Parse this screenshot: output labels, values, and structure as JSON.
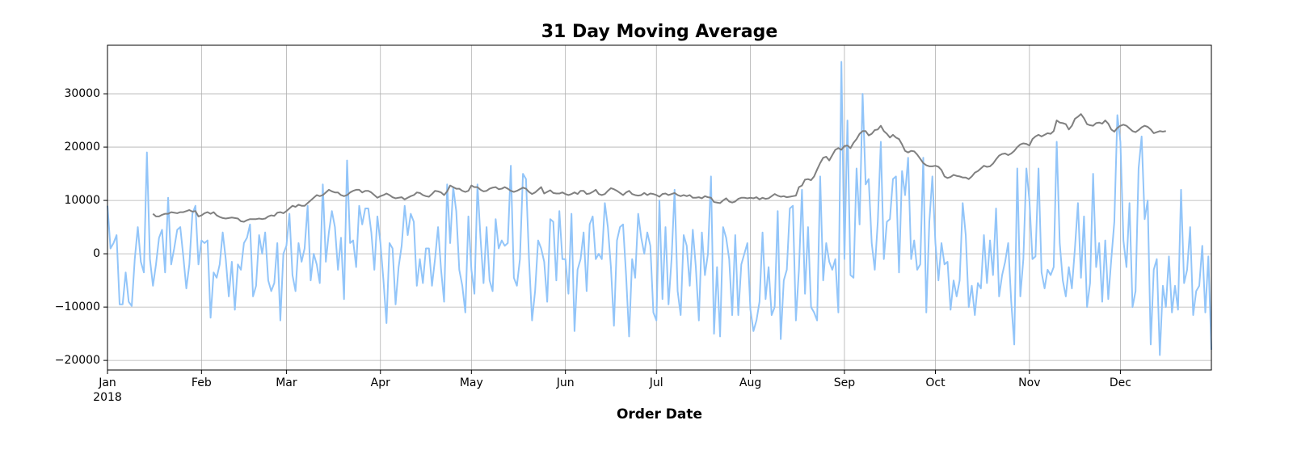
{
  "chart_data": {
    "type": "line",
    "title": "31 Day Moving Average",
    "xlabel": "Order Date",
    "x_year_label": "2018",
    "xlim": [
      0,
      364
    ],
    "ylim": [
      -21800,
      39100
    ],
    "grid": true,
    "xticks": [
      {
        "value": 0,
        "label": "Jan"
      },
      {
        "value": 31,
        "label": "Feb"
      },
      {
        "value": 59,
        "label": "Mar"
      },
      {
        "value": 90,
        "label": "Apr"
      },
      {
        "value": 120,
        "label": "May"
      },
      {
        "value": 151,
        "label": "Jun"
      },
      {
        "value": 181,
        "label": "Jul"
      },
      {
        "value": 212,
        "label": "Aug"
      },
      {
        "value": 243,
        "label": "Sep"
      },
      {
        "value": 273,
        "label": "Oct"
      },
      {
        "value": 304,
        "label": "Nov"
      },
      {
        "value": 334,
        "label": "Dec"
      }
    ],
    "yticks": [
      {
        "value": -20000,
        "label": "−20000"
      },
      {
        "value": -10000,
        "label": "−10000"
      },
      0,
      10000,
      20000,
      30000
    ],
    "series": [
      {
        "color": "#92c5f9",
        "values": [
          9000,
          1000,
          2000,
          3500,
          -9500,
          -9500,
          -3500,
          -9000,
          -9800,
          -1000,
          5000,
          -1500,
          -3500,
          19000,
          -1000,
          -6000,
          -2000,
          3000,
          4500,
          -3500,
          10500,
          -2000,
          1000,
          4500,
          5000,
          -500,
          -6500,
          -2000,
          7500,
          9000,
          -2000,
          2500,
          2000,
          2500,
          -12000,
          -3500,
          -4500,
          -2000,
          4000,
          -1000,
          -8000,
          -1500,
          -10500,
          -2000,
          -3000,
          2000,
          3000,
          5500,
          -8000,
          -6000,
          3500,
          0,
          4000,
          -5000,
          -7000,
          -5500,
          2000,
          -12500,
          0,
          1500,
          7500,
          -4000,
          -7000,
          2000,
          -1500,
          1000,
          9000,
          -5000,
          0,
          -2000,
          -5500,
          13000,
          -1500,
          4000,
          8000,
          5000,
          -3000,
          3000,
          -8500,
          17500,
          2000,
          2500,
          -2500,
          9000,
          5500,
          8500,
          8500,
          4000,
          -3000,
          7000,
          2000,
          -5000,
          -13000,
          2000,
          1000,
          -9500,
          -2500,
          1500,
          9000,
          3500,
          7500,
          6000,
          -6000,
          -1000,
          -5500,
          1000,
          1000,
          -6000,
          -1000,
          5000,
          -3000,
          -9000,
          13000,
          2000,
          12500,
          8000,
          -3000,
          -6000,
          -11000,
          7000,
          -3000,
          -7500,
          13000,
          3000,
          -5500,
          5000,
          -5000,
          -7000,
          6500,
          1000,
          2500,
          1500,
          2000,
          16500,
          -4500,
          -6000,
          -1000,
          15000,
          14000,
          -1000,
          -12500,
          -7000,
          2500,
          1000,
          -1500,
          -9000,
          6500,
          6000,
          -5000,
          8000,
          -1000,
          -1000,
          -7500,
          7500,
          -14500,
          -3000,
          -1000,
          4000,
          -7000,
          5500,
          7000,
          -1000,
          0,
          -1000,
          9500,
          5000,
          -2500,
          -13500,
          2500,
          5000,
          5500,
          -4000,
          -15500,
          -1000,
          -4500,
          7500,
          3000,
          0,
          4000,
          1500,
          -11000,
          -12500,
          10000,
          -8500,
          5000,
          -9500,
          -1000,
          12000,
          -7000,
          -11500,
          3500,
          1500,
          -6000,
          4500,
          -2500,
          -12500,
          4000,
          -4000,
          0,
          14500,
          -15000,
          -2500,
          -15500,
          5000,
          3000,
          -1000,
          -11500,
          3500,
          -11500,
          -2000,
          0,
          2000,
          -10500,
          -14500,
          -12500,
          -9000,
          4000,
          -8500,
          -2500,
          -11500,
          -10000,
          8000,
          -16000,
          -5000,
          -3000,
          8500,
          9000,
          -12500,
          -3000,
          12000,
          -7500,
          5000,
          -10000,
          -11000,
          -12500,
          14500,
          -5000,
          2000,
          -1500,
          -3000,
          -1000,
          -11000,
          36000,
          -1000,
          25000,
          -4000,
          -4500,
          16000,
          5500,
          30000,
          13000,
          14000,
          2000,
          -3000,
          6000,
          21000,
          -1000,
          6000,
          6500,
          14000,
          14500,
          -3500,
          15500,
          11000,
          18000,
          -1000,
          2500,
          -3000,
          -2000,
          18000,
          -11000,
          6000,
          14500,
          2000,
          -5000,
          2000,
          -2000,
          -1500,
          -10500,
          -5000,
          -8000,
          -5000,
          9500,
          3500,
          -10000,
          -6000,
          -11500,
          -5500,
          -6500,
          3500,
          -5500,
          2500,
          -4000,
          8500,
          -8000,
          -4000,
          -1500,
          2000,
          -9000,
          -17000,
          16000,
          -8000,
          -1000,
          16000,
          10000,
          -1000,
          -500,
          16000,
          -3500,
          -6500,
          -3000,
          -4000,
          -2500,
          21000,
          2000,
          -5000,
          -8000,
          -2500,
          -6500,
          1000,
          9500,
          -4500,
          7000,
          -10000,
          -5500,
          15000,
          -2500,
          2000,
          -9000,
          2500,
          -8500,
          -1000,
          6000,
          26000,
          21000,
          2500,
          -2500,
          9500,
          -10000,
          -7000,
          16000,
          22000,
          6500,
          10000,
          -17000,
          -3000,
          -1000,
          -19000,
          -6000,
          -10000,
          -500,
          -11000,
          -6000,
          -10500,
          12000,
          -5500,
          -3000,
          5000,
          -11500,
          -7000,
          -6000,
          1500,
          -11000,
          -500,
          -18000
        ]
      },
      {
        "color": "#808080",
        "values": [
          null,
          null,
          null,
          null,
          null,
          null,
          null,
          null,
          null,
          null,
          null,
          null,
          null,
          null,
          null,
          7500,
          7000,
          7000,
          7300,
          7500,
          7500,
          7800,
          7700,
          7600,
          7800,
          7800,
          8000,
          8200,
          7900,
          8000,
          7000,
          7200,
          7600,
          7800,
          7500,
          7800,
          7200,
          6900,
          6700,
          6600,
          6700,
          6800,
          6700,
          6600,
          6100,
          6000,
          6300,
          6500,
          6500,
          6500,
          6600,
          6500,
          6600,
          7000,
          7200,
          7100,
          7700,
          7800,
          7600,
          8000,
          8500,
          9000,
          8800,
          9200,
          9000,
          9000,
          9500,
          10000,
          10500,
          11000,
          10800,
          11000,
          11500,
          12000,
          11700,
          11500,
          11500,
          11000,
          10800,
          11000,
          11500,
          11800,
          12000,
          12000,
          11500,
          11800,
          11800,
          11500,
          11000,
          10500,
          10800,
          11000,
          11300,
          11000,
          10600,
          10400,
          10500,
          10600,
          10200,
          10500,
          10800,
          11000,
          11500,
          11400,
          11000,
          10800,
          10700,
          11200,
          11800,
          11700,
          11500,
          11000,
          11700,
          12800,
          12500,
          12200,
          12200,
          11800,
          11600,
          11800,
          12800,
          12500,
          12500,
          12000,
          11700,
          11800,
          12200,
          12400,
          12500,
          12100,
          12200,
          12500,
          12200,
          11800,
          11600,
          11800,
          12100,
          12400,
          12200,
          11600,
          11200,
          11500,
          12000,
          12500,
          11300,
          11600,
          11900,
          11400,
          11300,
          11300,
          11500,
          11200,
          11000,
          11200,
          11500,
          11200,
          11800,
          11800,
          11200,
          11300,
          11600,
          12000,
          11200,
          11000,
          11200,
          11800,
          12300,
          12100,
          11800,
          11400,
          11000,
          11500,
          11800,
          11200,
          11000,
          10900,
          11000,
          11400,
          11000,
          11300,
          11200,
          11000,
          10700,
          11200,
          11300,
          11000,
          11200,
          11400,
          11000,
          10800,
          11000,
          10800,
          11000,
          10500,
          10500,
          10600,
          10400,
          10800,
          10600,
          10500,
          9700,
          9600,
          9500,
          10000,
          10400,
          9800,
          9600,
          9800,
          10300,
          10500,
          10500,
          10400,
          10500,
          10400,
          10600,
          10200,
          10500,
          10300,
          10400,
          10800,
          11200,
          10900,
          10700,
          10800,
          10600,
          10700,
          10800,
          10900,
          12500,
          12800,
          13900,
          14000,
          13800,
          14500,
          15800,
          17000,
          18000,
          18200,
          17500,
          18500,
          19500,
          19800,
          19500,
          20200,
          20300,
          19800,
          20800,
          21500,
          22500,
          23000,
          23000,
          22200,
          22500,
          23200,
          23300,
          24000,
          23000,
          22500,
          21800,
          22300,
          21800,
          21500,
          20500,
          19300,
          19000,
          19300,
          19200,
          18600,
          17800,
          17000,
          16600,
          16400,
          16400,
          16500,
          16300,
          15700,
          14500,
          14200,
          14400,
          14800,
          14600,
          14500,
          14300,
          14300,
          14000,
          14500,
          15200,
          15500,
          16000,
          16500,
          16300,
          16400,
          16900,
          17700,
          18400,
          18700,
          18800,
          18500,
          18800,
          19300,
          20000,
          20500,
          20700,
          20600,
          20300,
          21500,
          22000,
          22300,
          22000,
          22300,
          22600,
          22500,
          23000,
          25000,
          24600,
          24500,
          24300,
          23300,
          24000,
          25300,
          25700,
          26200,
          25400,
          24300,
          24100,
          24000,
          24500,
          24600,
          24400,
          25000,
          24400,
          23300,
          22900,
          23600,
          24000,
          24200,
          24000,
          23500,
          23000,
          22800,
          23200,
          23700,
          24000,
          23800,
          23300,
          22600,
          22800,
          23000,
          22900,
          23000,
          null,
          null,
          null,
          null,
          null,
          null,
          null,
          null,
          null,
          null,
          null,
          null,
          null,
          null,
          null
        ]
      }
    ]
  }
}
